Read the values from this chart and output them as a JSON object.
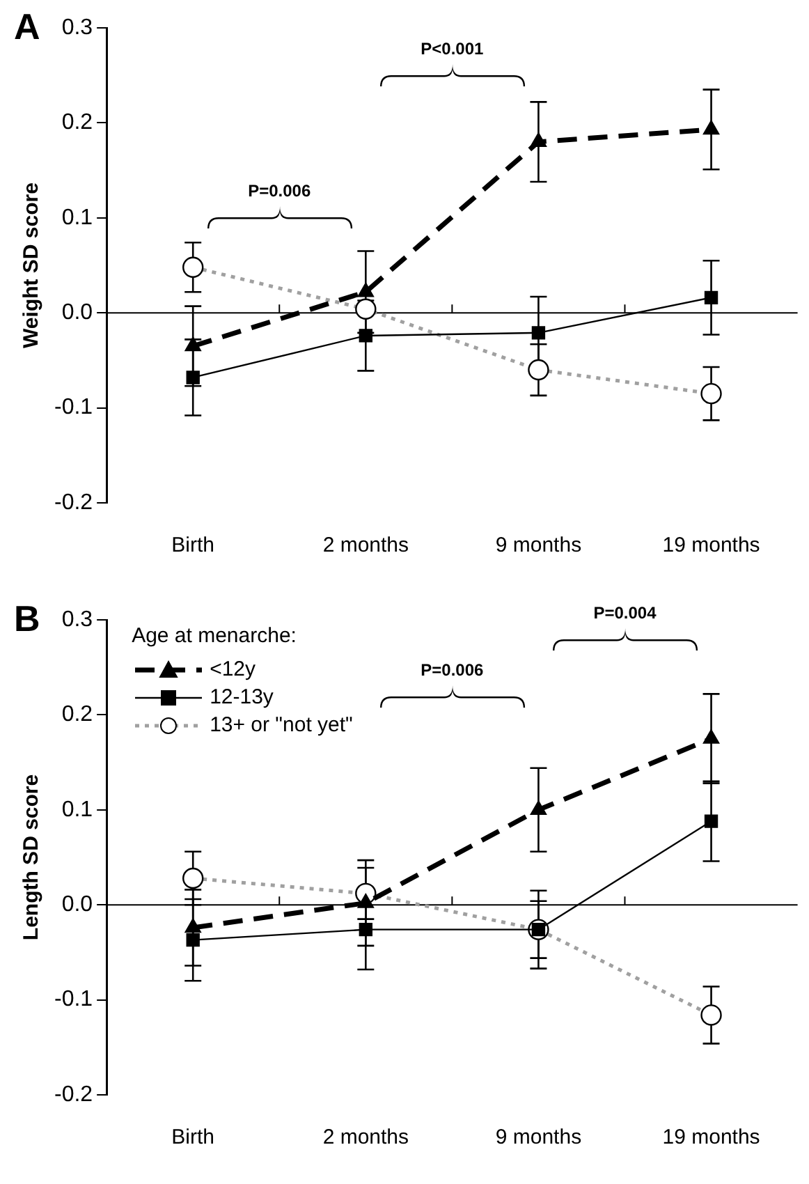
{
  "chart_data": [
    {
      "type": "line",
      "title": "A",
      "ylabel": "Weight SD score",
      "categories": [
        "Birth",
        "2 months",
        "9 months",
        "19 months"
      ],
      "ylim": [
        -0.2,
        0.3
      ],
      "yticks": [
        -0.2,
        -0.1,
        {
          "value": 0,
          "label": "0.0"
        },
        0.1,
        0.2,
        0.3
      ],
      "legend": false,
      "series": [
        {
          "color": "#000000",
          "line_style": "dashed",
          "marker": "triangle",
          "values": [
            -0.035,
            0.022,
            0.18,
            0.193
          ],
          "errors": [
            0.042,
            0.043,
            0.042,
            0.042
          ]
        },
        {
          "color": "#000000",
          "line_style": "solid",
          "marker": "square",
          "values": [
            -0.068,
            -0.024,
            -0.021,
            0.016
          ],
          "errors": [
            0.04,
            0.037,
            0.038,
            0.039
          ]
        },
        {
          "color": "#a0a0a0",
          "line_style": "dotted",
          "marker": "circle",
          "values": [
            0.048,
            0.004,
            -0.06,
            -0.085
          ],
          "errors": [
            0.026,
            null,
            0.027,
            0.028
          ]
        }
      ],
      "ref_lines": [
        {
          "axis": "y",
          "value": 0
        }
      ],
      "annotations": [
        "P=0.006",
        "P<0.001"
      ]
    },
    {
      "type": "line",
      "title": "B",
      "ylabel": "Length SD score",
      "categories": [
        "Birth",
        "2 months",
        "9 months",
        "19 months"
      ],
      "ylim": [
        -0.2,
        0.3
      ],
      "yticks": [
        -0.2,
        -0.1,
        {
          "value": 0,
          "label": "0.0"
        },
        0.1,
        0.2,
        0.3
      ],
      "legend": "top left",
      "legend_title": "Age at menarche:",
      "series": [
        {
          "name": "<12y",
          "color": "#000000",
          "line_style": "dashed",
          "marker": "triangle",
          "values": [
            -0.024,
            0.002,
            0.1,
            0.175
          ],
          "errors": [
            0.04,
            0.045,
            0.044,
            0.047
          ]
        },
        {
          "name": "12-13y",
          "color": "#000000",
          "line_style": "solid",
          "marker": "square",
          "values": [
            -0.037,
            -0.026,
            -0.026,
            0.088
          ],
          "errors": [
            0.043,
            0.042,
            0.03,
            0.042
          ]
        },
        {
          "name": "13+ or \"not yet\"",
          "color": "#a0a0a0",
          "line_style": "dotted",
          "marker": "circle",
          "values": [
            0.028,
            0.012,
            -0.026,
            -0.116
          ],
          "errors": [
            0.028,
            0.027,
            0.041,
            0.03
          ]
        }
      ],
      "ref_lines": [
        {
          "axis": "y",
          "value": 0
        }
      ],
      "annotations": [
        "P=0.006",
        "P=0.004"
      ]
    }
  ]
}
